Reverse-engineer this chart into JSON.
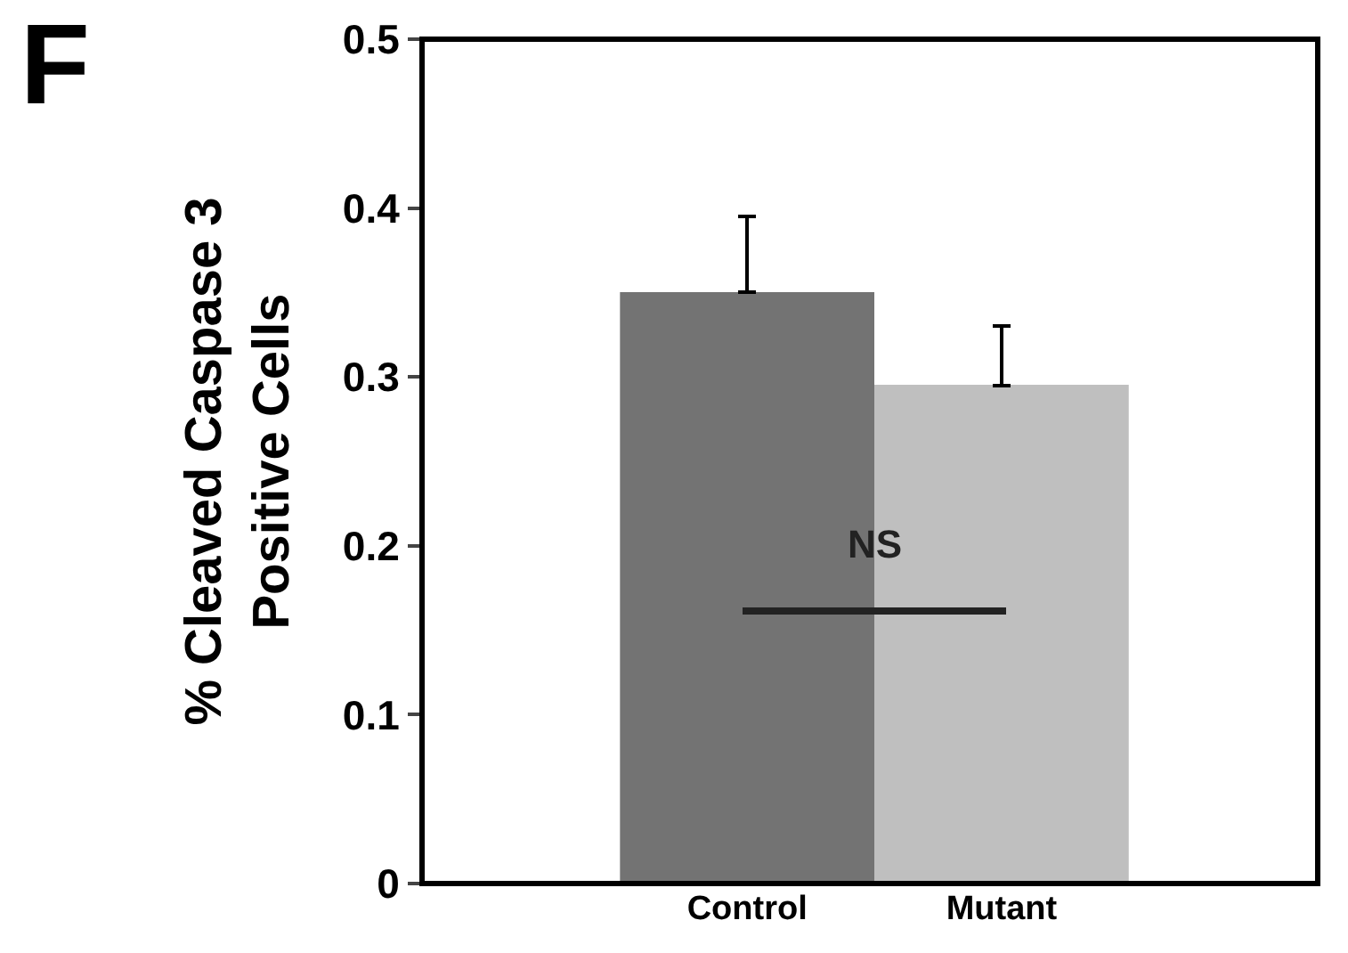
{
  "chart_data": {
    "type": "bar",
    "title": "F",
    "ylabel": "% Cleaved Caspase 3\nPositive Cells",
    "categories": [
      "Control",
      "Mutant"
    ],
    "values": [
      0.35,
      0.295
    ],
    "colors": [
      "#737373",
      "#bfbfbf"
    ],
    "errors": [
      [
        0.35,
        0.395
      ],
      [
        0.295,
        0.33
      ]
    ],
    "ylim": [
      0,
      0.5
    ],
    "yticks": [
      0,
      0.1,
      0.2,
      0.3,
      0.4,
      0.5
    ],
    "annotations": [
      "NS"
    ],
    "grid": false
  }
}
